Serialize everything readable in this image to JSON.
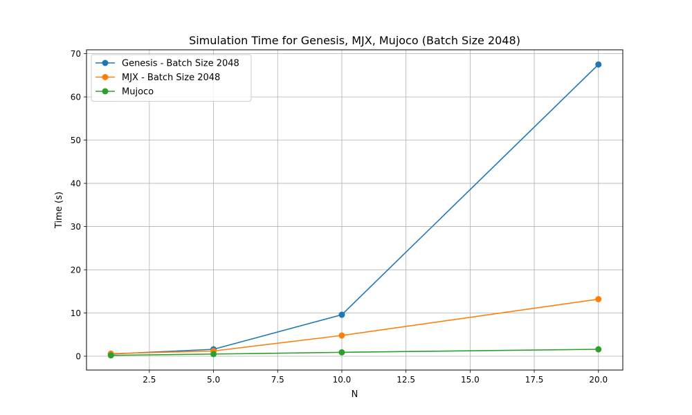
{
  "chart_data": {
    "type": "line",
    "title": "Simulation Time for Genesis, MJX, Mujoco (Batch Size 2048)",
    "xlabel": "N",
    "ylabel": "Time (s)",
    "x": [
      1,
      5,
      10,
      20
    ],
    "xlim": [
      0.05,
      20.95
    ],
    "ylim": [
      -3.2,
      70.9
    ],
    "xticks": [
      2.5,
      5.0,
      7.5,
      10.0,
      12.5,
      15.0,
      17.5,
      20.0
    ],
    "xtick_labels": [
      "2.5",
      "5.0",
      "7.5",
      "10.0",
      "12.5",
      "15.0",
      "17.5",
      "20.0"
    ],
    "yticks": [
      0,
      10,
      20,
      30,
      40,
      50,
      60,
      70
    ],
    "ytick_labels": [
      "0",
      "10",
      "20",
      "30",
      "40",
      "50",
      "60",
      "70"
    ],
    "grid": true,
    "legend_position": "top-left",
    "series": [
      {
        "name": "Genesis - Batch Size 2048",
        "color": "#1f77b4",
        "values": [
          0.5,
          1.6,
          9.6,
          67.5
        ]
      },
      {
        "name": "MJX - Batch Size 2048",
        "color": "#ff7f0e",
        "values": [
          0.6,
          1.2,
          4.8,
          13.2
        ]
      },
      {
        "name": "Mujoco",
        "color": "#2ca02c",
        "values": [
          0.2,
          0.5,
          0.9,
          1.6
        ]
      }
    ]
  }
}
